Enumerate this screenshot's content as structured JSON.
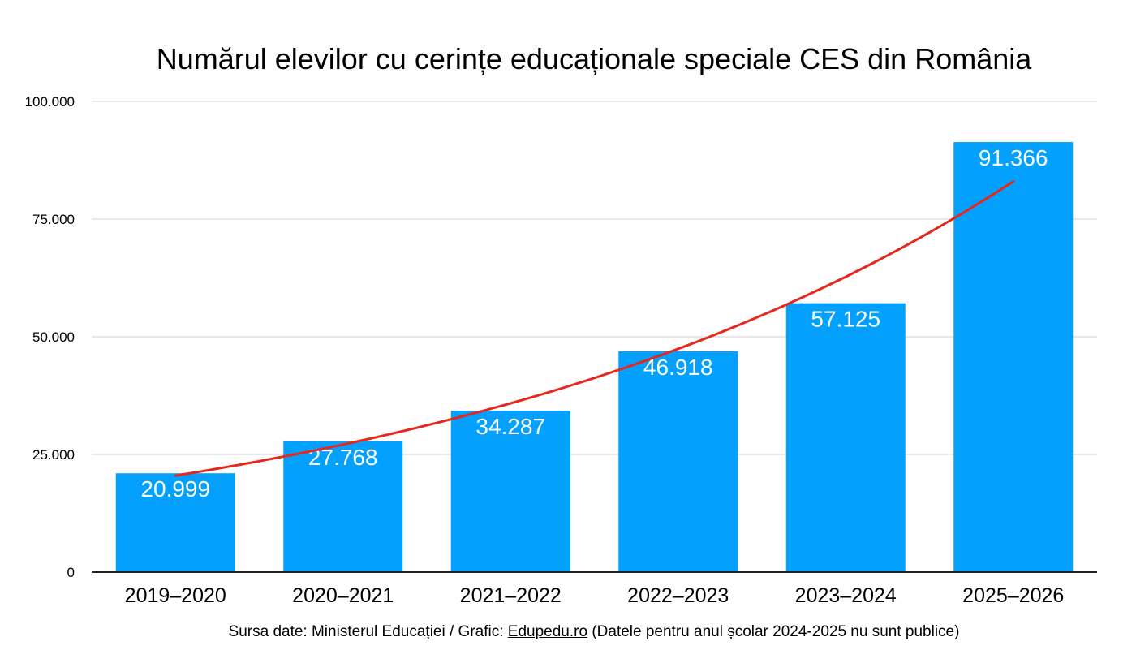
{
  "chart_data": {
    "type": "bar",
    "title": "Numărul elevilor cu cerințe educaționale speciale CES din România",
    "categories": [
      "2019–2020",
      "2020–2021",
      "2021–2022",
      "2022–2023",
      "2023–2024",
      "2025–2026"
    ],
    "values": [
      20999,
      27768,
      34287,
      46918,
      57125,
      91366
    ],
    "value_labels": [
      "20.999",
      "27.768",
      "34.287",
      "46.918",
      "57.125",
      "91.366"
    ],
    "ylim": [
      0,
      100000
    ],
    "y_ticks": [
      0,
      25000,
      50000,
      75000,
      100000
    ],
    "y_tick_labels": [
      "0",
      "25.000",
      "50.000",
      "75.000",
      "100.000"
    ],
    "grid": true,
    "trendline": {
      "type": "exponential",
      "color": "#e8261c",
      "start_value": 20500,
      "end_value": 83000
    },
    "colors": {
      "bar": "#03a0fd",
      "label": "#ffffff",
      "grid": "#d0d0d0",
      "axis": "#222222"
    },
    "xlabel": "",
    "ylabel": ""
  },
  "footer": {
    "prefix": "Sursa date: Ministerul Educației / Grafic: ",
    "link": "Edupedu.ro",
    "suffix": " (Datele pentru anul școlar 2024-2025 nu sunt publice)"
  }
}
